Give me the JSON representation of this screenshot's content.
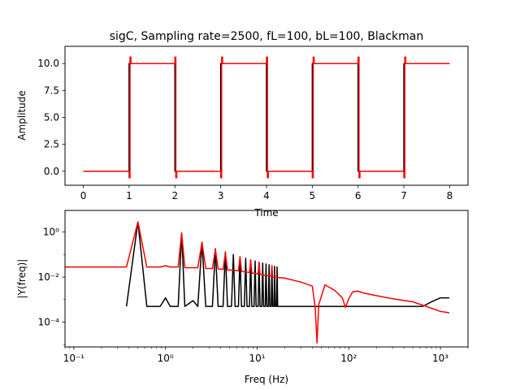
{
  "chart_data": [
    {
      "type": "line",
      "title": "sigC, Sampling rate=2500, fL=100, bL=100, Blackman",
      "xlabel": "Time",
      "ylabel": "Amplitude",
      "xlim": [
        -0.4,
        8.4
      ],
      "ylim": [
        -1.3,
        11.6
      ],
      "xticks": [
        "0",
        "1",
        "2",
        "3",
        "4",
        "5",
        "6",
        "7",
        "8"
      ],
      "yticks": [
        "0.0",
        "2.5",
        "5.0",
        "7.5",
        "10.0"
      ],
      "grid": false,
      "series": [
        {
          "name": "",
          "color": "#000000",
          "x": [
            0,
            1,
            1,
            2,
            2,
            3,
            3,
            4,
            4,
            5,
            5,
            6,
            6,
            7,
            7,
            8
          ],
          "y": [
            0,
            0,
            10,
            10,
            0,
            0,
            10,
            10,
            0,
            0,
            10,
            10,
            0,
            0,
            10,
            10
          ]
        },
        {
          "name": "",
          "color": "#ff0000",
          "x": [
            0,
            1.0,
            1.0,
            1.02,
            1.02,
            1.04,
            1.04,
            2.0,
            2.0,
            2.02,
            2.02,
            2.04,
            2.04,
            3.0,
            3.0,
            3.02,
            3.02,
            3.04,
            3.04,
            4.0,
            4.0,
            4.02,
            4.02,
            4.04,
            4.04,
            5.0,
            5.0,
            5.02,
            5.02,
            5.04,
            5.04,
            6.0,
            6.0,
            6.02,
            6.02,
            6.04,
            6.04,
            7.0,
            7.0,
            7.02,
            7.02,
            7.04,
            7.04,
            8.0
          ],
          "y": [
            0,
            0,
            -0.6,
            -0.6,
            10.6,
            10.6,
            10,
            10,
            10.6,
            10.6,
            -0.6,
            -0.6,
            0,
            0,
            -0.6,
            -0.6,
            10.6,
            10.6,
            10,
            10,
            10.6,
            10.6,
            -0.6,
            -0.6,
            0,
            0,
            -0.6,
            -0.6,
            10.6,
            10.6,
            10,
            10,
            10.6,
            10.6,
            -0.6,
            -0.6,
            0,
            0,
            -0.6,
            -0.6,
            10.6,
            10.6,
            10,
            10
          ]
        }
      ]
    },
    {
      "type": "line",
      "title": "",
      "xlabel": "Freq (Hz)",
      "ylabel": "|Y(freq)|",
      "xscale": "log",
      "yscale": "log",
      "xlim": [
        0.08,
        2000
      ],
      "ylim": [
        8e-06,
        9
      ],
      "xticks": [
        "10⁻¹",
        "10⁰",
        "10¹",
        "10²",
        "10³"
      ],
      "yticks": [
        "10⁻⁴",
        "10⁻²",
        "10⁰"
      ],
      "grid": false,
      "series": [
        {
          "name": "",
          "color": "#000000",
          "x": [
            0.375,
            0.5,
            0.625,
            0.875,
            1.0,
            1.125,
            1.375,
            1.5,
            1.625,
            2.0,
            2.25,
            2.5,
            2.75,
            3.25,
            3.5,
            3.75,
            4.25,
            4.5,
            4.75,
            5.25,
            5.5,
            5.75,
            6.25,
            6.5,
            6.75,
            7.25,
            7.5,
            7.75,
            8.25,
            8.5,
            8.75,
            9.25,
            9.5,
            9.75,
            10.25,
            10.5,
            10.75,
            11.25,
            11.5,
            11.75,
            12.25,
            12.5,
            12.75,
            13.25,
            13.5,
            13.75,
            14.25,
            14.5,
            14.75,
            15.25,
            15.5,
            15.75,
            16.25,
            16.5,
            16.75,
            20,
            40,
            80,
            160,
            320,
            640,
            800,
            1000,
            1250
          ],
          "y": [
            0.0005,
            2.8,
            0.0005,
            0.0005,
            0.0012,
            0.0005,
            0.0005,
            0.9,
            0.0005,
            0.0009,
            0.0005,
            0.35,
            0.0005,
            0.0005,
            0.18,
            0.0005,
            0.0005,
            0.13,
            0.0005,
            0.0005,
            0.1,
            0.0005,
            0.0005,
            0.08,
            0.0005,
            0.0005,
            0.068,
            0.0005,
            0.0005,
            0.058,
            0.0005,
            0.0005,
            0.052,
            0.0005,
            0.0005,
            0.046,
            0.0005,
            0.0005,
            0.042,
            0.0005,
            0.0005,
            0.038,
            0.0005,
            0.0005,
            0.035,
            0.0005,
            0.0005,
            0.032,
            0.0005,
            0.0005,
            0.03,
            0.0005,
            0.0005,
            0.028,
            0.0005,
            0.0005,
            0.0005,
            0.0005,
            0.0005,
            0.0005,
            0.0005,
            0.0008,
            0.0012,
            0.0012
          ]
        },
        {
          "name": "",
          "color": "#ff0000",
          "x": [
            0.08,
            0.375,
            0.5,
            0.625,
            0.875,
            1.0,
            1.125,
            1.375,
            1.5,
            1.625,
            2.25,
            2.5,
            2.75,
            3.25,
            3.5,
            3.75,
            4.25,
            4.5,
            4.75,
            6.25,
            6.5,
            6.75,
            8.25,
            8.5,
            8.75,
            10.25,
            10.5,
            10.75,
            14.25,
            14.5,
            14.75,
            20,
            30,
            40,
            43,
            45,
            47,
            55,
            70,
            85,
            92,
            100,
            110,
            125,
            150,
            200,
            300,
            500,
            700,
            1000,
            1250
          ],
          "y": [
            0.028,
            0.028,
            2.8,
            0.028,
            0.028,
            0.032,
            0.028,
            0.028,
            0.9,
            0.026,
            0.026,
            0.34,
            0.024,
            0.024,
            0.17,
            0.023,
            0.022,
            0.12,
            0.021,
            0.019,
            0.078,
            0.018,
            0.016,
            0.055,
            0.015,
            0.014,
            0.045,
            0.013,
            0.011,
            0.031,
            0.01,
            0.009,
            0.006,
            0.004,
            0.00045,
            1.2e-05,
            0.0006,
            0.0045,
            0.0026,
            0.0012,
            0.00045,
            0.0011,
            0.0022,
            0.0024,
            0.0019,
            0.0015,
            0.0011,
            0.0008,
            0.0005,
            0.0003,
            0.00026
          ]
        }
      ]
    }
  ]
}
